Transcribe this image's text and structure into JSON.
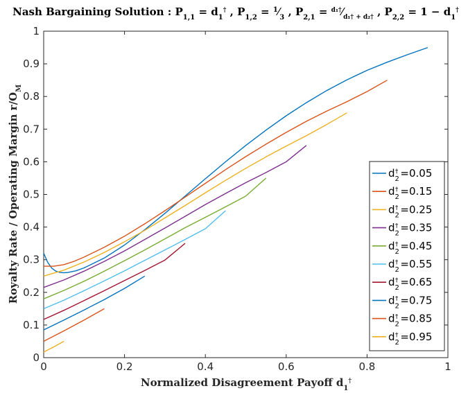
{
  "chart_data": {
    "type": "line",
    "title": {
      "prefix": "Nash Bargaining Solution : ",
      "p11": "P",
      "p11_sub": "1,1",
      "eq1": " = d",
      "d1_sub": "1",
      "dagger": "†",
      "p12": ", P",
      "p12_sub": "1,2",
      "eq2": " = ",
      "frac_num": "1",
      "frac_den": "3",
      "p21": ", P",
      "p21_sub": "2,1",
      "eq3": " = ",
      "frac2_num": "d₁†",
      "frac2_den": "d₁† + d₂†",
      "p22": ", P",
      "p22_sub": "2,2",
      "eq4": " = 1 − d",
      "d1_sub_end": "1"
    },
    "xlabel": {
      "text": "Normalized Disagreement Payoff  d",
      "sub": "1",
      "sup": "†"
    },
    "ylabel": {
      "text": "Royalty Rate / Operating Margin  r/O",
      "sub": "M"
    },
    "xlim": [
      0,
      1
    ],
    "ylim": [
      0,
      1
    ],
    "xticks": [
      "0",
      "0.2",
      "0.4",
      "0.6",
      "0.8",
      "1"
    ],
    "yticks": [
      "0",
      "0.1",
      "0.2",
      "0.3",
      "0.4",
      "0.5",
      "0.6",
      "0.7",
      "0.8",
      "0.9",
      "1"
    ],
    "grid": false,
    "legend_position": "right",
    "legend_symbol": "d",
    "legend_symbol_sub": "2",
    "legend_symbol_sup": "†",
    "series": [
      {
        "name": "=0.05",
        "color": "#0072BD",
        "x": [
          0,
          0.01,
          0.02,
          0.03,
          0.04,
          0.05,
          0.06,
          0.08,
          0.1,
          0.15,
          0.2,
          0.25,
          0.3,
          0.35,
          0.4,
          0.45,
          0.5,
          0.55,
          0.6,
          0.65,
          0.7,
          0.75,
          0.8,
          0.85,
          0.9,
          0.95
        ],
        "y": [
          0.32,
          0.292,
          0.274,
          0.265,
          0.261,
          0.26,
          0.261,
          0.266,
          0.275,
          0.305,
          0.345,
          0.392,
          0.442,
          0.495,
          0.548,
          0.6,
          0.65,
          0.697,
          0.741,
          0.781,
          0.818,
          0.851,
          0.88,
          0.905,
          0.928,
          0.95
        ]
      },
      {
        "name": "=0.15",
        "color": "#D95319",
        "x": [
          0,
          0.025,
          0.05,
          0.075,
          0.1,
          0.15,
          0.2,
          0.25,
          0.3,
          0.35,
          0.4,
          0.45,
          0.5,
          0.55,
          0.6,
          0.65,
          0.7,
          0.75,
          0.8,
          0.85
        ],
        "y": [
          0.28,
          0.28,
          0.285,
          0.295,
          0.308,
          0.338,
          0.372,
          0.41,
          0.45,
          0.492,
          0.534,
          0.576,
          0.616,
          0.654,
          0.69,
          0.724,
          0.755,
          0.784,
          0.815,
          0.85
        ]
      },
      {
        "name": "=0.25",
        "color": "#EDB120",
        "x": [
          0,
          0.05,
          0.1,
          0.15,
          0.2,
          0.25,
          0.3,
          0.35,
          0.4,
          0.45,
          0.5,
          0.55,
          0.6,
          0.65,
          0.7,
          0.75
        ],
        "y": [
          0.25,
          0.268,
          0.293,
          0.322,
          0.355,
          0.39,
          0.428,
          0.466,
          0.505,
          0.543,
          0.58,
          0.615,
          0.648,
          0.68,
          0.714,
          0.75
        ]
      },
      {
        "name": "=0.35",
        "color": "#7E2F8E",
        "x": [
          0,
          0.05,
          0.1,
          0.15,
          0.2,
          0.25,
          0.3,
          0.35,
          0.4,
          0.45,
          0.5,
          0.55,
          0.6,
          0.65
        ],
        "y": [
          0.215,
          0.238,
          0.265,
          0.295,
          0.327,
          0.362,
          0.397,
          0.433,
          0.469,
          0.503,
          0.536,
          0.567,
          0.6,
          0.65
        ]
      },
      {
        "name": "=0.45",
        "color": "#77AC30",
        "x": [
          0,
          0.05,
          0.1,
          0.15,
          0.2,
          0.25,
          0.3,
          0.35,
          0.4,
          0.45,
          0.5,
          0.55
        ],
        "y": [
          0.18,
          0.206,
          0.234,
          0.265,
          0.297,
          0.33,
          0.364,
          0.398,
          0.43,
          0.462,
          0.495,
          0.55
        ]
      },
      {
        "name": "=0.55",
        "color": "#4DBEEE",
        "x": [
          0,
          0.05,
          0.1,
          0.15,
          0.2,
          0.25,
          0.3,
          0.35,
          0.4,
          0.45
        ],
        "y": [
          0.15,
          0.176,
          0.205,
          0.235,
          0.266,
          0.298,
          0.33,
          0.362,
          0.395,
          0.45
        ]
      },
      {
        "name": "=0.65",
        "color": "#A2142F",
        "x": [
          0,
          0.05,
          0.1,
          0.15,
          0.2,
          0.25,
          0.3,
          0.35
        ],
        "y": [
          0.117,
          0.145,
          0.175,
          0.205,
          0.236,
          0.267,
          0.299,
          0.35
        ]
      },
      {
        "name": "=0.75",
        "color": "#0072BD",
        "x": [
          0,
          0.05,
          0.1,
          0.15,
          0.2,
          0.25
        ],
        "y": [
          0.085,
          0.115,
          0.146,
          0.178,
          0.212,
          0.25
        ]
      },
      {
        "name": "=0.85",
        "color": "#D95319",
        "x": [
          0,
          0.05,
          0.1,
          0.15
        ],
        "y": [
          0.05,
          0.082,
          0.115,
          0.15
        ]
      },
      {
        "name": "=0.95",
        "color": "#EDB120",
        "x": [
          0,
          0.025,
          0.05
        ],
        "y": [
          0.017,
          0.033,
          0.05
        ]
      }
    ]
  }
}
